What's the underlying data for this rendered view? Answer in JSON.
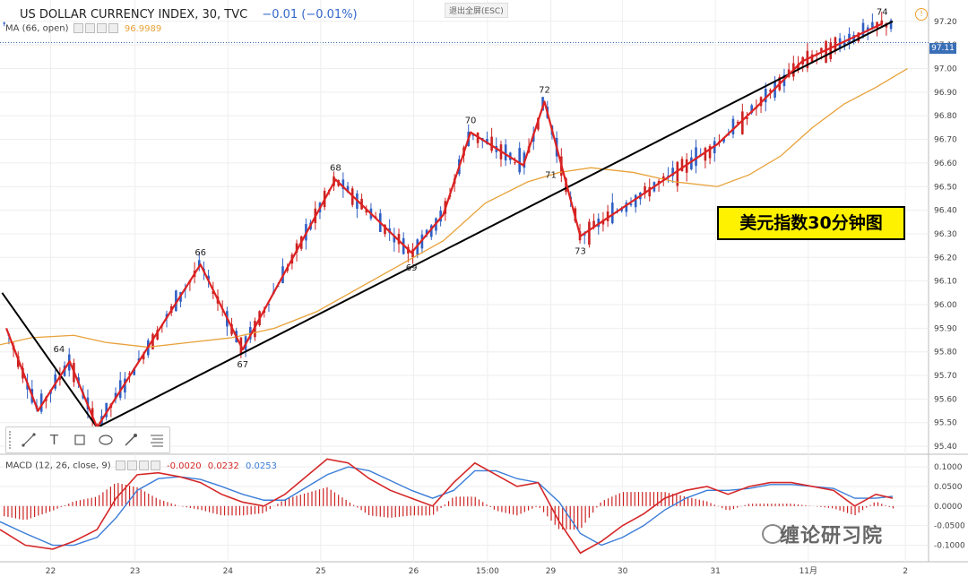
{
  "header": {
    "symbol": "US DOLLAR CURRENCY INDEX, 30, TVC",
    "change": "−0.01 (−0.01%)",
    "ma_label": "MA (66, open)",
    "ma_value": "96.9989",
    "macd_label": "MACD (12, 26, close, 9)",
    "macd_hist": "-0.0020",
    "macd_line": "0.0232",
    "macd_signal": "0.0253",
    "exit_fullscreen": "退出全屏(ESC)",
    "current_price": "97.11"
  },
  "title_box": "美元指数30分钟图",
  "watermark": "缠论研习院",
  "toolbar": {
    "items": [
      "line-tool",
      "text-tool",
      "rectangle-tool",
      "ellipse-tool",
      "brush-tool",
      "fib-tool"
    ],
    "text_glyph": "T"
  },
  "colors": {
    "bull": "#2f5fc4",
    "bear": "#cc2222",
    "ma": "#e8a23a",
    "wave": "#dd2222",
    "trend": "#000000",
    "macd_fast": "#d62728",
    "macd_slow": "#3b7dd8",
    "grid": "#eeeeee"
  },
  "chart_data": {
    "type": "line",
    "title": "US DOLLAR CURRENCY INDEX, 30, TVC",
    "price_axis": {
      "ticks": [
        "97.20",
        "97.10",
        "97.00",
        "96.90",
        "96.80",
        "96.70",
        "96.60",
        "96.50",
        "96.40",
        "96.30",
        "96.20",
        "96.10",
        "96.00",
        "95.90",
        "95.80",
        "95.70",
        "95.60",
        "95.50",
        "95.40"
      ],
      "range": [
        95.37,
        97.26
      ]
    },
    "time_axis": {
      "ticks": [
        "22",
        "23",
        "24",
        "25",
        "26",
        "15:00",
        "29",
        "30",
        "31",
        "11月",
        "2"
      ]
    },
    "wave_points": [
      {
        "label": "",
        "t": 0.3,
        "price": 95.9
      },
      {
        "label": "",
        "t": 1.5,
        "price": 95.55
      },
      {
        "label": "64",
        "t": 2.8,
        "price": 95.76
      },
      {
        "label": "",
        "t": 4.6,
        "price": 95.48
      },
      {
        "label": "66",
        "t": 9.5,
        "price": 96.17
      },
      {
        "label": "67",
        "t": 11.5,
        "price": 95.81
      },
      {
        "label": "68",
        "t": 15.9,
        "price": 96.53
      },
      {
        "label": "69",
        "t": 19.5,
        "price": 96.22
      },
      {
        "label": "",
        "t": 21.0,
        "price": 96.38
      },
      {
        "label": "70",
        "t": 22.3,
        "price": 96.73
      },
      {
        "label": "",
        "t": 24.8,
        "price": 96.59
      },
      {
        "label": "71",
        "t": 26.1,
        "price": 96.5
      },
      {
        "label": "72",
        "t": 25.8,
        "price": 96.86
      },
      {
        "label": "73",
        "t": 27.5,
        "price": 96.29
      },
      {
        "label": "74",
        "t": 41.8,
        "price": 97.19
      }
    ],
    "wave_path": [
      [
        0.3,
        95.9
      ],
      [
        1.8,
        95.55
      ],
      [
        3.3,
        95.76
      ],
      [
        4.6,
        95.48
      ],
      [
        9.5,
        96.17
      ],
      [
        11.5,
        95.81
      ],
      [
        15.9,
        96.53
      ],
      [
        19.5,
        96.22
      ],
      [
        21.0,
        96.38
      ],
      [
        22.3,
        96.73
      ],
      [
        24.8,
        96.59
      ],
      [
        25.8,
        96.86
      ],
      [
        27.5,
        96.29
      ],
      [
        31.0,
        96.5
      ],
      [
        34.0,
        96.68
      ],
      [
        36.0,
        96.85
      ],
      [
        38.0,
        97.03
      ],
      [
        41.8,
        97.19
      ]
    ],
    "trend_lines": [
      {
        "from": [
          0.1,
          96.05
        ],
        "to": [
          4.6,
          95.48
        ]
      },
      {
        "from": [
          4.6,
          95.48
        ],
        "to": [
          42.3,
          97.2
        ]
      }
    ],
    "ma_series": [
      [
        0,
        95.83
      ],
      [
        1.5,
        95.86
      ],
      [
        3.5,
        95.87
      ],
      [
        5,
        95.84
      ],
      [
        7,
        95.82
      ],
      [
        9,
        95.84
      ],
      [
        11,
        95.86
      ],
      [
        13,
        95.9
      ],
      [
        15,
        95.97
      ],
      [
        17,
        96.07
      ],
      [
        19,
        96.17
      ],
      [
        21,
        96.27
      ],
      [
        23,
        96.43
      ],
      [
        25,
        96.52
      ],
      [
        26.5,
        96.56
      ],
      [
        28,
        96.58
      ],
      [
        30,
        96.56
      ],
      [
        32,
        96.52
      ],
      [
        34,
        96.5
      ],
      [
        35.5,
        96.55
      ],
      [
        37,
        96.63
      ],
      [
        38.5,
        96.75
      ],
      [
        40,
        96.85
      ],
      [
        41.5,
        96.92
      ],
      [
        43,
        97.0
      ]
    ],
    "macd": {
      "range": [
        -0.14,
        0.13
      ],
      "ticks": [
        "0.1000",
        "0.0500",
        "0.0000",
        "-0.0500",
        "-0.1000"
      ],
      "fast": [
        [
          0,
          -0.06
        ],
        [
          1.2,
          -0.1
        ],
        [
          2.5,
          -0.11
        ],
        [
          3.5,
          -0.09
        ],
        [
          4.6,
          -0.06
        ],
        [
          5.5,
          0.02
        ],
        [
          6.5,
          0.08
        ],
        [
          7.5,
          0.085
        ],
        [
          8.5,
          0.075
        ],
        [
          9.5,
          0.06
        ],
        [
          10.5,
          0.03
        ],
        [
          11.5,
          0.01
        ],
        [
          12.5,
          0.0
        ],
        [
          13.5,
          0.03
        ],
        [
          15.5,
          0.12
        ],
        [
          16.5,
          0.11
        ],
        [
          17.5,
          0.07
        ],
        [
          18.5,
          0.04
        ],
        [
          19.5,
          0.02
        ],
        [
          20.5,
          0.0
        ],
        [
          21.5,
          0.06
        ],
        [
          22.5,
          0.11
        ],
        [
          23.5,
          0.08
        ],
        [
          24.5,
          0.05
        ],
        [
          25.5,
          0.06
        ],
        [
          26.5,
          -0.04
        ],
        [
          27.5,
          -0.12
        ],
        [
          28.5,
          -0.09
        ],
        [
          29.5,
          -0.05
        ],
        [
          30.5,
          -0.02
        ],
        [
          31.5,
          0.02
        ],
        [
          32.5,
          0.04
        ],
        [
          33.5,
          0.05
        ],
        [
          34.5,
          0.03
        ],
        [
          35.5,
          0.05
        ],
        [
          36.5,
          0.06
        ],
        [
          37.5,
          0.06
        ],
        [
          38.5,
          0.05
        ],
        [
          39.5,
          0.04
        ],
        [
          40.5,
          -0.0
        ],
        [
          41.5,
          0.03
        ],
        [
          42.3,
          0.02
        ]
      ],
      "slow": [
        [
          0,
          -0.04
        ],
        [
          1.2,
          -0.07
        ],
        [
          2.5,
          -0.1
        ],
        [
          3.5,
          -0.1
        ],
        [
          4.6,
          -0.08
        ],
        [
          5.5,
          -0.03
        ],
        [
          6.5,
          0.04
        ],
        [
          7.5,
          0.07
        ],
        [
          8.5,
          0.075
        ],
        [
          9.5,
          0.068
        ],
        [
          10.5,
          0.05
        ],
        [
          11.5,
          0.03
        ],
        [
          12.5,
          0.015
        ],
        [
          13.5,
          0.015
        ],
        [
          15.5,
          0.08
        ],
        [
          16.5,
          0.1
        ],
        [
          17.5,
          0.09
        ],
        [
          18.5,
          0.065
        ],
        [
          19.5,
          0.04
        ],
        [
          20.5,
          0.02
        ],
        [
          21.5,
          0.04
        ],
        [
          22.5,
          0.09
        ],
        [
          23.5,
          0.09
        ],
        [
          24.5,
          0.07
        ],
        [
          25.5,
          0.06
        ],
        [
          26.5,
          0.01
        ],
        [
          27.5,
          -0.07
        ],
        [
          28.5,
          -0.1
        ],
        [
          29.5,
          -0.08
        ],
        [
          30.5,
          -0.05
        ],
        [
          31.5,
          -0.01
        ],
        [
          32.5,
          0.02
        ],
        [
          33.5,
          0.04
        ],
        [
          34.5,
          0.04
        ],
        [
          35.5,
          0.045
        ],
        [
          36.5,
          0.055
        ],
        [
          37.5,
          0.055
        ],
        [
          38.5,
          0.05
        ],
        [
          39.5,
          0.045
        ],
        [
          40.5,
          0.02
        ],
        [
          41.5,
          0.02
        ],
        [
          42.3,
          0.025
        ]
      ]
    },
    "time_ticks_t": [
      2.4,
      6.4,
      10.8,
      15.2,
      19.6,
      23.1,
      26.1,
      29.5,
      33.9,
      38.3,
      42.9
    ]
  }
}
